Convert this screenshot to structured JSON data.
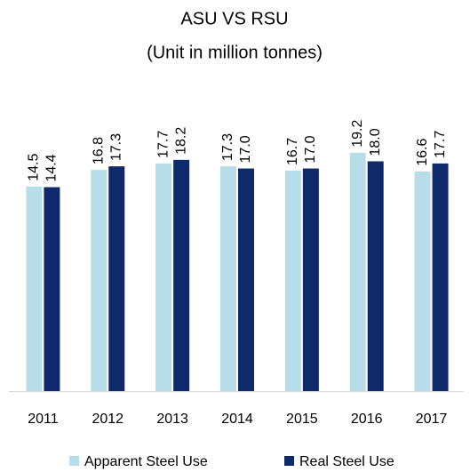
{
  "chart_data": {
    "type": "bar",
    "title": "ASU VS RSU",
    "subtitle": "(Unit in million tonnes)",
    "categories": [
      "2011",
      "2012",
      "2013",
      "2014",
      "2015",
      "2016",
      "2017"
    ],
    "series": [
      {
        "name": "Apparent Steel Use",
        "color": "#b7dde8",
        "values": [
          14.5,
          16.8,
          17.7,
          17.3,
          16.7,
          19.2,
          16.6
        ]
      },
      {
        "name": "Real Steel Use",
        "color": "#0e2a6b",
        "values": [
          14.4,
          17.3,
          18.2,
          17.0,
          17.0,
          18.0,
          17.7
        ]
      }
    ],
    "value_labels": [
      [
        "14.5",
        "16.8",
        "17.7",
        "17.3",
        "16.7",
        "19.2",
        "16.6"
      ],
      [
        "14.4",
        "17.3",
        "18.2",
        "17.0",
        "17.0",
        "18.0",
        "17.7"
      ]
    ],
    "ylim": [
      -14,
      24
    ],
    "legend": "bottom"
  }
}
